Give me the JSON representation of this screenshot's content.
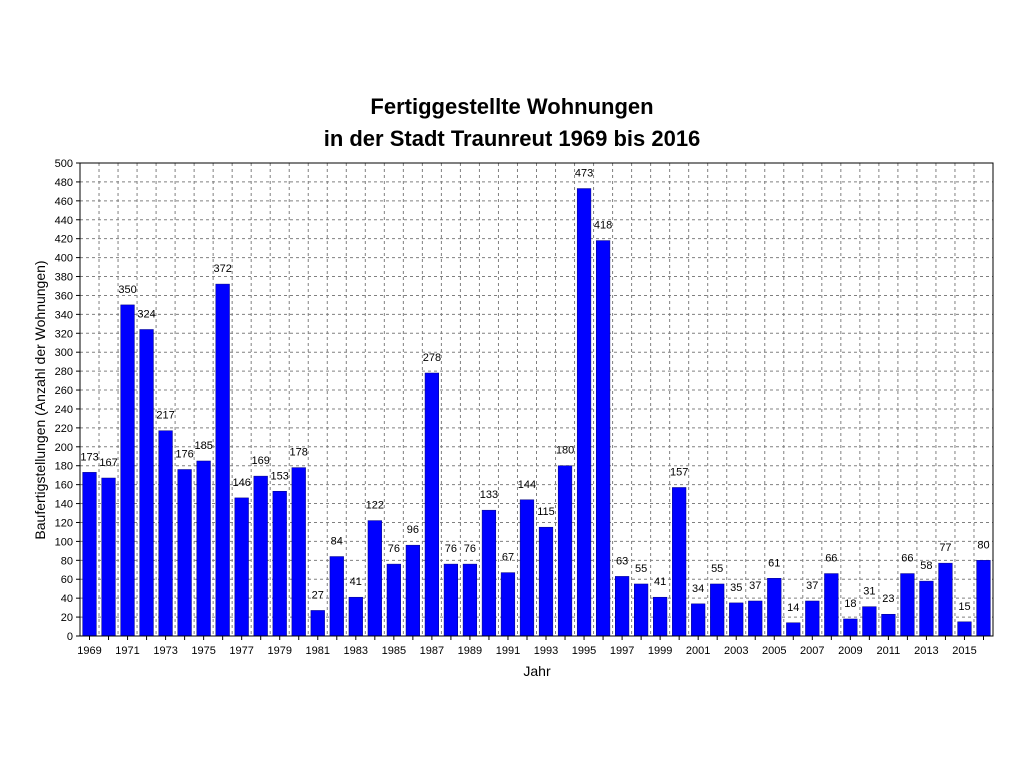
{
  "chart_data": {
    "type": "bar",
    "title": "Fertiggestellte Wohnungen",
    "subtitle": "in der Stadt Traunreut 1969 bis 2016",
    "xlabel": "Jahr",
    "ylabel": "Baufertigstellungen (Anzahl der Wohnungen)",
    "ylim": [
      0,
      500
    ],
    "y_tick_step": 20,
    "grid": true,
    "bar_color": "#0000ff",
    "grid_color": "#808080",
    "categories": [
      "1969",
      "1970",
      "1971",
      "1972",
      "1973",
      "1974",
      "1975",
      "1976",
      "1977",
      "1978",
      "1979",
      "1980",
      "1981",
      "1982",
      "1983",
      "1984",
      "1985",
      "1986",
      "1987",
      "1988",
      "1989",
      "1990",
      "1991",
      "1992",
      "1993",
      "1994",
      "1995",
      "1996",
      "1997",
      "1998",
      "1999",
      "2000",
      "2001",
      "2002",
      "2003",
      "2004",
      "2005",
      "2006",
      "2007",
      "2008",
      "2009",
      "2010",
      "2011",
      "2012",
      "2013",
      "2014",
      "2015",
      "2016"
    ],
    "x_tick_labels": [
      "1969",
      "",
      "1971",
      "",
      "1973",
      "",
      "1975",
      "",
      "1977",
      "",
      "1979",
      "",
      "1981",
      "",
      "1983",
      "",
      "1985",
      "",
      "1987",
      "",
      "1989",
      "",
      "1991",
      "",
      "1993",
      "",
      "1995",
      "",
      "1997",
      "",
      "1999",
      "",
      "2001",
      "",
      "2003",
      "",
      "2005",
      "",
      "2007",
      "",
      "2009",
      "",
      "2011",
      "",
      "2013",
      "",
      "2015",
      ""
    ],
    "values": [
      173,
      167,
      350,
      324,
      217,
      176,
      185,
      372,
      146,
      169,
      153,
      178,
      27,
      84,
      41,
      122,
      76,
      96,
      278,
      76,
      76,
      133,
      67,
      144,
      115,
      180,
      473,
      418,
      63,
      55,
      41,
      157,
      34,
      55,
      35,
      37,
      61,
      14,
      37,
      66,
      18,
      31,
      23,
      66,
      58,
      77,
      15,
      80
    ]
  }
}
